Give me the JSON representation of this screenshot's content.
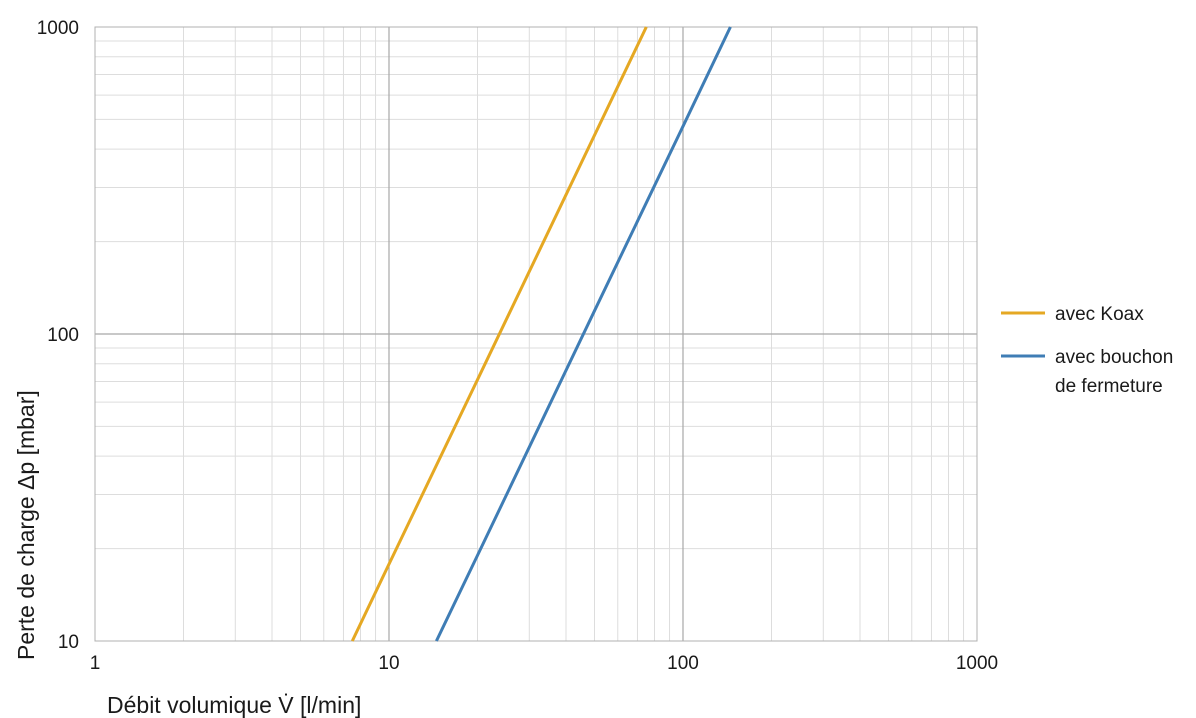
{
  "chart_data": {
    "type": "line",
    "title": "",
    "xlabel": "Débit volumique V̇ [l/min]",
    "ylabel": "Perte de charge Δp [mbar]",
    "x_scale": "log",
    "y_scale": "log",
    "xlim": [
      1,
      1000
    ],
    "ylim": [
      10,
      1000
    ],
    "x_ticks": [
      "1",
      "10",
      "100",
      "1000"
    ],
    "y_ticks": [
      "10",
      "100",
      "1000"
    ],
    "grid": true,
    "legend_position": "right",
    "series": [
      {
        "name": "avec Koax",
        "legend_lines": [
          "avec Koax"
        ],
        "color": "#E5A823",
        "x": [
          7.5,
          10,
          20,
          40,
          75
        ],
        "y": [
          10,
          17.8,
          71,
          284,
          1000
        ]
      },
      {
        "name": "avec bouchon de fermeture",
        "legend_lines": [
          "avec bouchon",
          "de fermeture"
        ],
        "color": "#3F7DB5",
        "x": [
          14.5,
          20,
          50,
          100,
          145
        ],
        "y": [
          10,
          19,
          119,
          475,
          1000
        ]
      }
    ]
  }
}
